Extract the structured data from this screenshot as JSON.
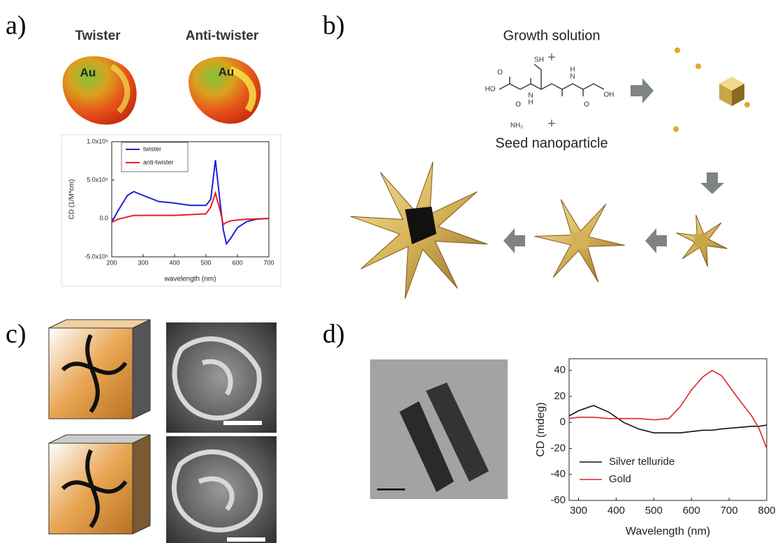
{
  "panels": {
    "a": {
      "label": "a)",
      "twister": "Twister",
      "anti_twister": "Anti-twister",
      "au": [
        "Au",
        "Au"
      ]
    },
    "b": {
      "label": "b)",
      "growth": "Growth solution",
      "plus": [
        "+",
        "+"
      ],
      "seed": "Seed nanoparticle",
      "molecule_labels": [
        "SH",
        "HO",
        "NH₂",
        "OH",
        "O",
        "O",
        "O",
        "N",
        "H",
        "N",
        "H"
      ]
    },
    "c": {
      "label": "c)"
    },
    "d": {
      "label": "d)"
    }
  },
  "chart_data": [
    {
      "type": "line",
      "xlabel": "wavelength (nm)",
      "ylabel": "CD (1/M*cm)",
      "x": [
        200,
        220,
        250,
        270,
        300,
        350,
        400,
        450,
        500,
        515,
        530,
        545,
        555,
        565,
        580,
        600,
        630,
        660,
        700
      ],
      "series": [
        {
          "name": "twister",
          "color": "#1f1fd6",
          "values": [
            -50000,
            100000,
            300000,
            350000,
            300000,
            220000,
            200000,
            170000,
            170000,
            250000,
            760000,
            200000,
            -150000,
            -330000,
            -250000,
            -120000,
            -40000,
            -10000,
            0
          ]
        },
        {
          "name": "anti-twister",
          "color": "#e8211c",
          "values": [
            -50000,
            -10000,
            20000,
            40000,
            40000,
            40000,
            40000,
            50000,
            60000,
            150000,
            330000,
            100000,
            -80000,
            -50000,
            -30000,
            -20000,
            -10000,
            -5000,
            0
          ]
        }
      ],
      "xlim": [
        200,
        700
      ],
      "xticks": [
        200,
        300,
        400,
        500,
        600,
        700
      ],
      "ylim": [
        -500000,
        1000000
      ],
      "yticks": [
        {
          "value": -500000,
          "label": "-5.0x10⁵"
        },
        {
          "value": 0,
          "label": "0.0"
        },
        {
          "value": 500000,
          "label": "5.0x10⁵"
        },
        {
          "value": 1000000,
          "label": "1.0x10⁶"
        }
      ],
      "legend": "upper left"
    },
    {
      "type": "line",
      "xlabel": "Wavelength (nm)",
      "ylabel": "CD (mdeg)",
      "x": [
        275,
        300,
        340,
        380,
        420,
        460,
        500,
        540,
        570,
        600,
        630,
        655,
        680,
        720,
        760,
        780,
        800
      ],
      "series": [
        {
          "name": "Silver telluride",
          "color": "#111111",
          "values": [
            5,
            9,
            13,
            8,
            0,
            -5,
            -8,
            -8,
            -8,
            -7,
            -6,
            -6,
            -5,
            -4,
            -3,
            -3,
            -2
          ]
        },
        {
          "name": "Gold",
          "color": "#e0202a",
          "values": [
            3,
            4,
            4,
            3,
            3,
            3,
            2,
            3,
            12,
            25,
            35,
            40,
            36,
            20,
            5,
            -5,
            -20
          ]
        }
      ],
      "xlim": [
        275,
        800
      ],
      "xticks": [
        300,
        400,
        500,
        600,
        700,
        800
      ],
      "ylim": [
        -60,
        49
      ],
      "yticks": [
        -60,
        -40,
        -20,
        0,
        20,
        40
      ],
      "legend": "lower left"
    }
  ]
}
